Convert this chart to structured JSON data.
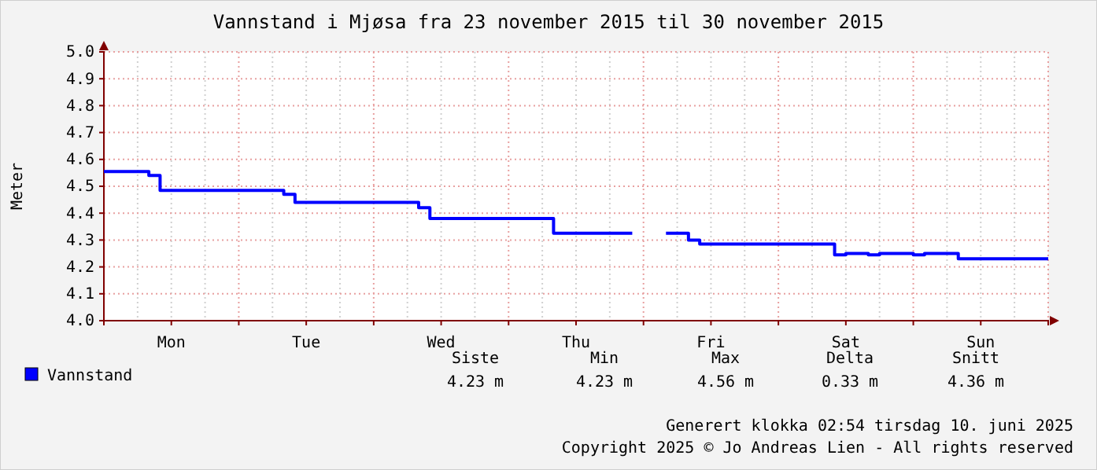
{
  "chart_data": {
    "type": "step",
    "title": "Vannstand i Mjøsa fra 23 november 2015 til 30 november 2015",
    "ylabel": "Meter",
    "categories": [
      null,
      null,
      null,
      null,
      null,
      null,
      "Mon",
      null,
      null,
      null,
      null,
      null,
      null,
      null,
      null,
      null,
      null,
      null,
      "Tue",
      null,
      null,
      null,
      null,
      null,
      null,
      null,
      null,
      null,
      null,
      null,
      "Wed",
      null,
      null,
      null,
      null,
      null,
      null,
      null,
      null,
      null,
      null,
      null,
      "Thu",
      null,
      null,
      null,
      null,
      null,
      null,
      null,
      null,
      null,
      null,
      null,
      "Fri",
      null,
      null,
      null,
      null,
      null,
      null,
      null,
      null,
      null,
      null,
      null,
      "Sat",
      null,
      null,
      null,
      null,
      null,
      null,
      null,
      null,
      null,
      null,
      null,
      "Sun",
      null,
      null,
      null,
      null,
      null,
      null
    ],
    "ylim": [
      4.0,
      5.0
    ],
    "yticks": [
      {
        "value": 4.0,
        "label": "4.0"
      },
      4.1,
      4.2,
      4.3,
      4.4,
      4.5,
      4.6,
      4.7,
      4.8,
      4.9,
      {
        "value": 5.0,
        "label": "5.0"
      }
    ],
    "grid": true,
    "legend": "bottom left",
    "series": [
      {
        "name": "Vannstand",
        "color": "#0000ff",
        "values": [
          4.555,
          4.555,
          4.555,
          4.555,
          4.54,
          4.485,
          4.485,
          4.485,
          4.485,
          4.485,
          4.485,
          4.485,
          4.485,
          4.485,
          4.485,
          4.485,
          4.47,
          4.44,
          4.44,
          4.44,
          4.44,
          4.44,
          4.44,
          4.44,
          4.44,
          4.44,
          4.44,
          4.44,
          4.42,
          4.38,
          4.38,
          4.38,
          4.38,
          4.38,
          4.38,
          4.38,
          4.38,
          4.38,
          4.38,
          4.38,
          4.325,
          4.325,
          4.325,
          4.325,
          4.325,
          4.325,
          4.325,
          4.325,
          null,
          null,
          4.325,
          4.325,
          4.3,
          4.285,
          4.285,
          4.285,
          4.285,
          4.285,
          4.285,
          4.285,
          4.285,
          4.285,
          4.285,
          4.285,
          4.285,
          4.245,
          4.25,
          4.25,
          4.245,
          4.25,
          4.25,
          4.25,
          4.245,
          4.25,
          4.25,
          4.25,
          4.23,
          4.23,
          4.23,
          4.23,
          4.23,
          4.23,
          4.23,
          4.23,
          4.23
        ]
      }
    ],
    "annotations": [
      "Siste",
      "Min",
      "Max",
      "Delta",
      "Snitt",
      "4.23 m",
      "4.23 m",
      "4.56 m",
      "0.33 m",
      "4.36 m",
      "Generert klokka 02:54 tirsdag 10. juni 2025",
      "Copyright 2025 © Jo Andreas Lien - All rights reserved"
    ]
  }
}
